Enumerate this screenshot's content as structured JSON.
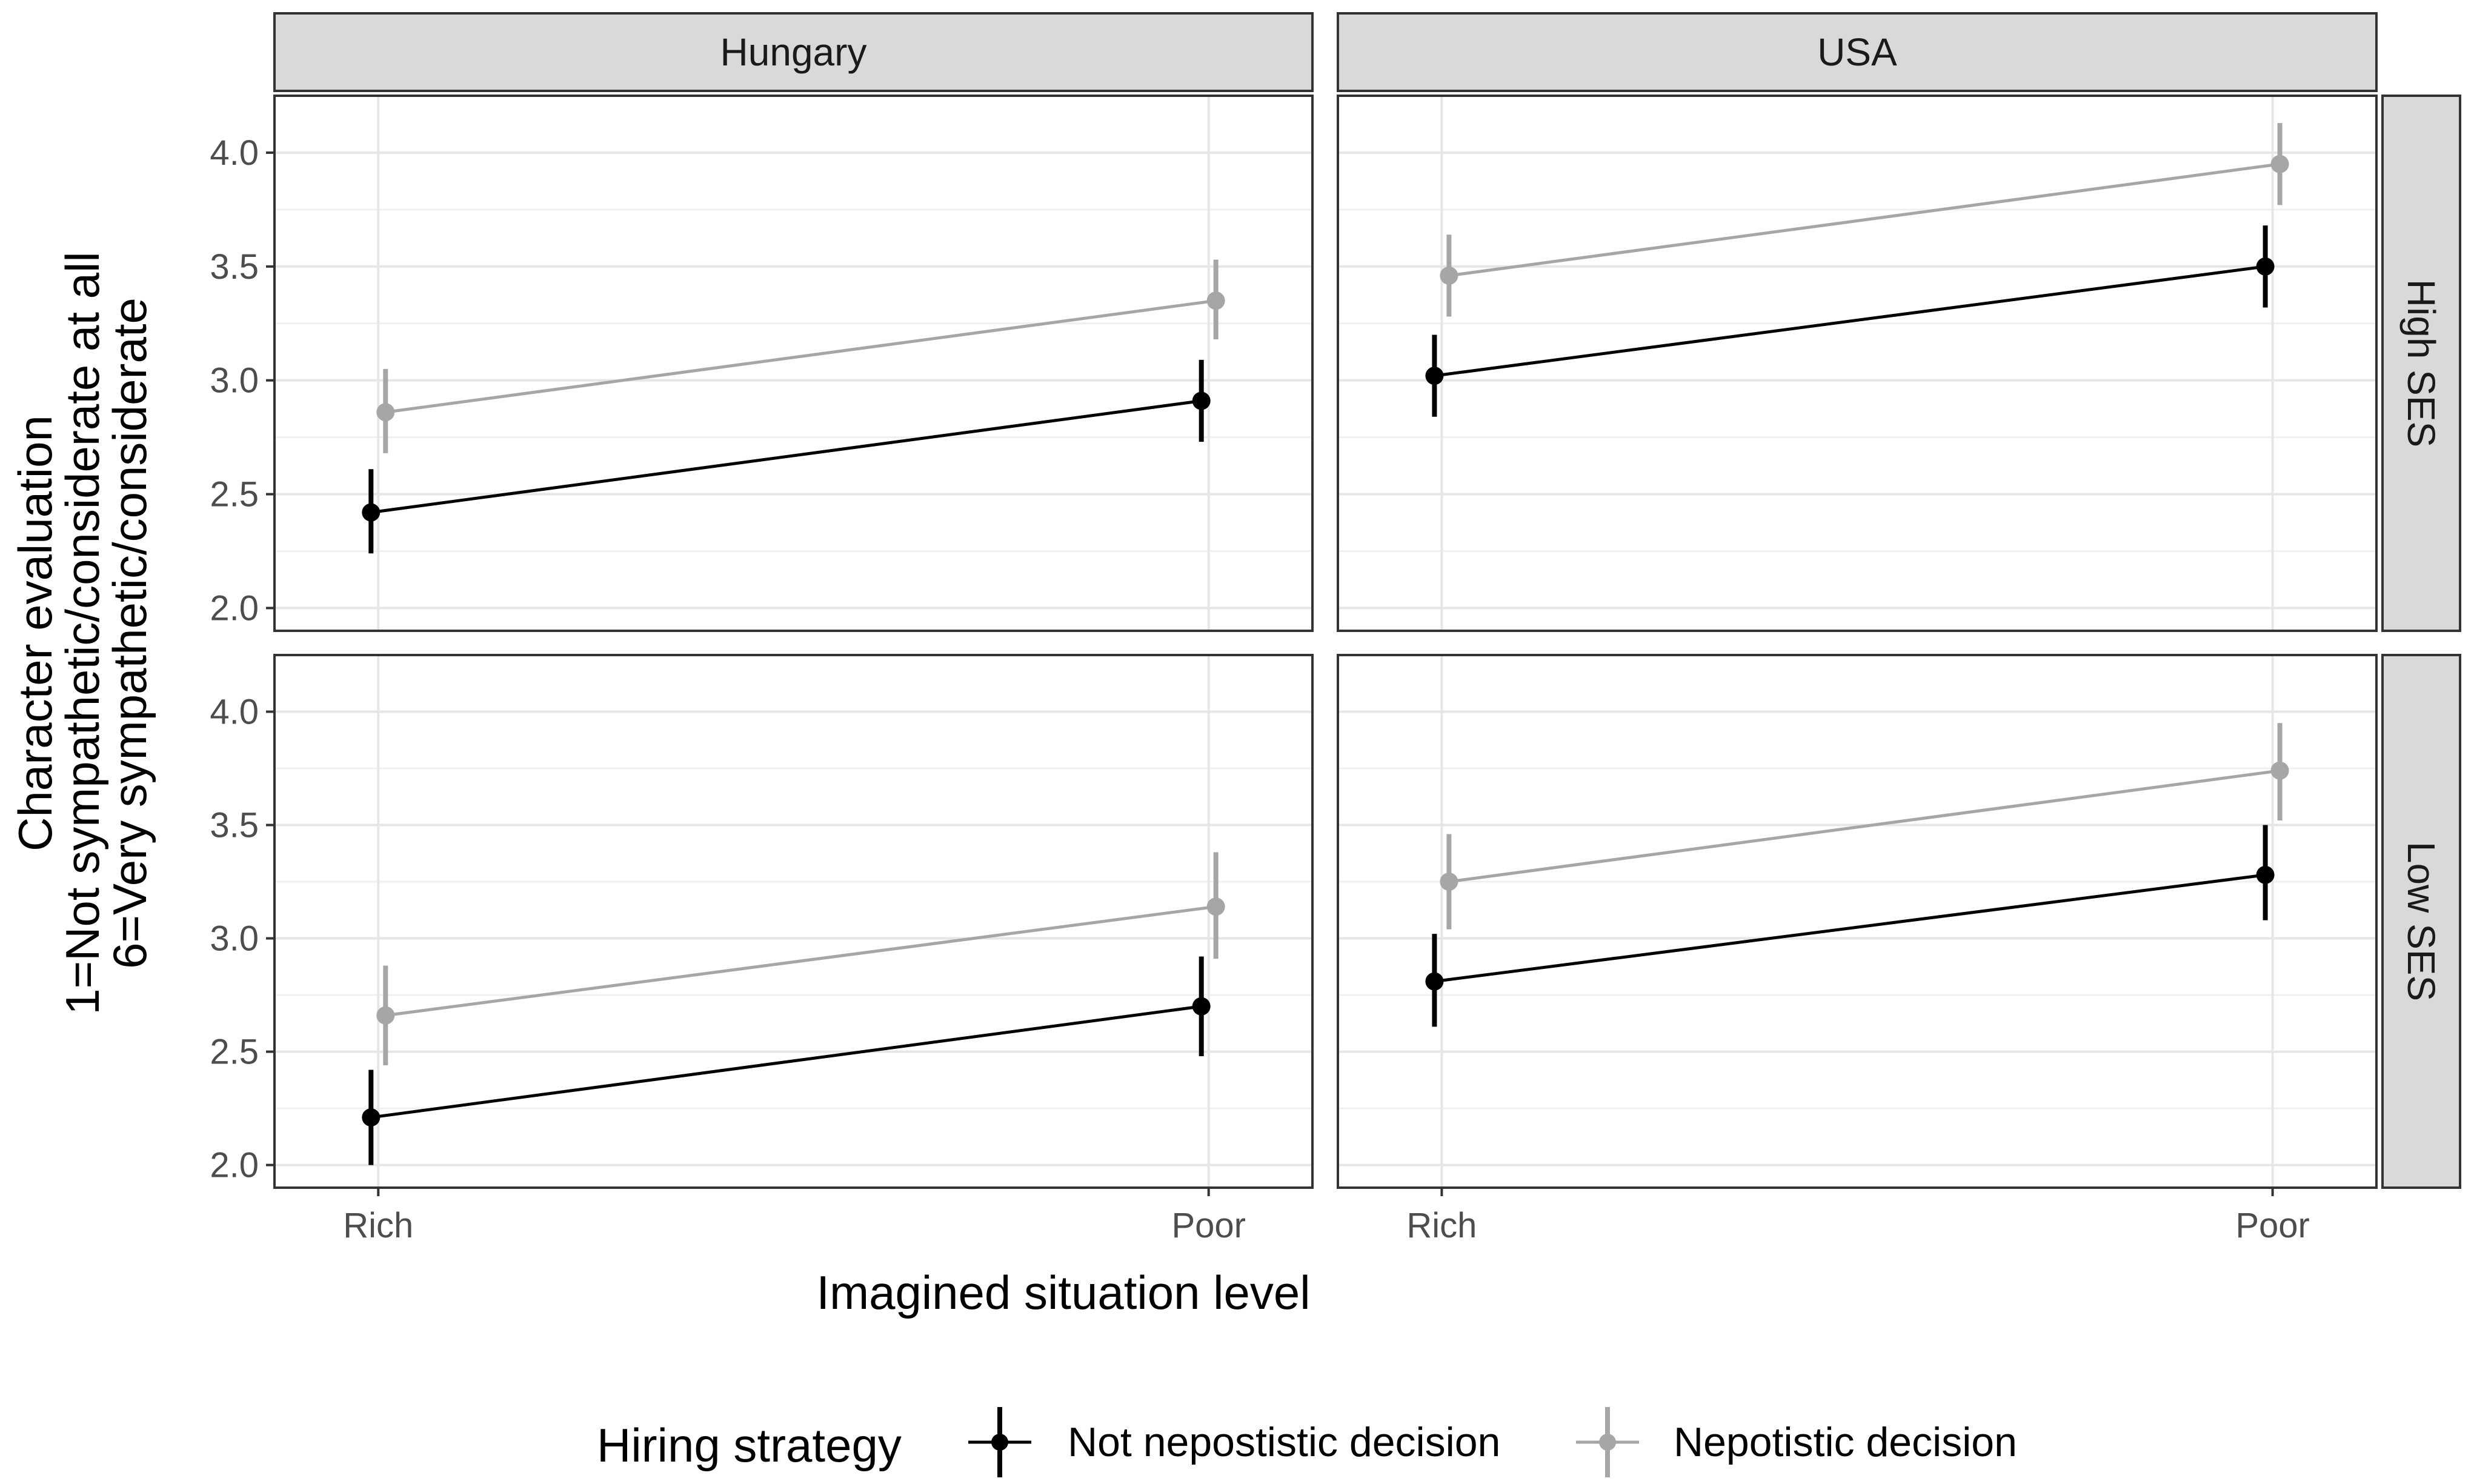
{
  "chart_data": {
    "type": "line",
    "facet_columns": [
      "Hungary",
      "USA"
    ],
    "facet_rows": [
      "High SES",
      "Low SES"
    ],
    "categories": [
      "Rich",
      "Poor"
    ],
    "xlabel": "Imagined situation level",
    "ylabel_lines": [
      "Character evaluation",
      "1=Not sympathetic/considerate at all",
      "6=Very sympathetic/considerate"
    ],
    "ylim": [
      1.9,
      4.25
    ],
    "yticks": [
      "2.0",
      "2.5",
      "3.0",
      "3.5",
      "4.0"
    ],
    "ytick_values": [
      2.0,
      2.5,
      3.0,
      3.5,
      4.0
    ],
    "grid": true,
    "legend": {
      "title": "Hiring strategy",
      "position": "bottom",
      "entries": [
        "Not nepostistic decision",
        "Nepotistic decision"
      ]
    },
    "series_colors": [
      "#000000",
      "#a6a6a6"
    ],
    "panels": [
      {
        "col": "Hungary",
        "row": "High SES",
        "series": [
          {
            "name": "Not nepostistic decision",
            "values": [
              2.42,
              2.91
            ],
            "lower": [
              2.24,
              2.73
            ],
            "upper": [
              2.61,
              3.09
            ]
          },
          {
            "name": "Nepotistic decision",
            "values": [
              2.86,
              3.35
            ],
            "lower": [
              2.68,
              3.18
            ],
            "upper": [
              3.05,
              3.53
            ]
          }
        ]
      },
      {
        "col": "USA",
        "row": "High SES",
        "series": [
          {
            "name": "Not nepostistic decision",
            "values": [
              3.02,
              3.5
            ],
            "lower": [
              2.84,
              3.32
            ],
            "upper": [
              3.2,
              3.68
            ]
          },
          {
            "name": "Nepotistic decision",
            "values": [
              3.46,
              3.95
            ],
            "lower": [
              3.28,
              3.77
            ],
            "upper": [
              3.64,
              4.13
            ]
          }
        ]
      },
      {
        "col": "Hungary",
        "row": "Low SES",
        "series": [
          {
            "name": "Not nepostistic decision",
            "values": [
              2.21,
              2.7
            ],
            "lower": [
              2.0,
              2.48
            ],
            "upper": [
              2.42,
              2.92
            ]
          },
          {
            "name": "Nepotistic decision",
            "values": [
              2.66,
              3.14
            ],
            "lower": [
              2.44,
              2.91
            ],
            "upper": [
              2.88,
              3.38
            ]
          }
        ]
      },
      {
        "col": "USA",
        "row": "Low SES",
        "series": [
          {
            "name": "Not nepostistic decision",
            "values": [
              2.81,
              3.28
            ],
            "lower": [
              2.61,
              3.08
            ],
            "upper": [
              3.02,
              3.5
            ]
          },
          {
            "name": "Nepotistic decision",
            "values": [
              3.25,
              3.74
            ],
            "lower": [
              3.04,
              3.52
            ],
            "upper": [
              3.46,
              3.95
            ]
          }
        ]
      }
    ]
  }
}
